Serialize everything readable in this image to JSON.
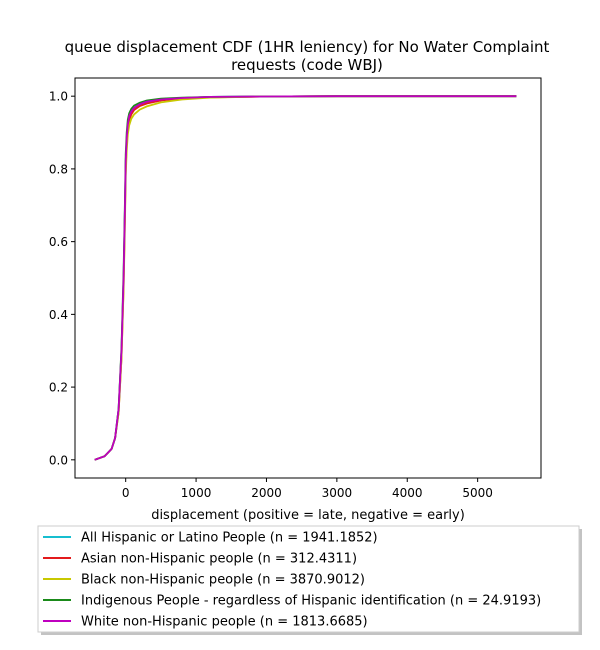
{
  "chart_data": {
    "type": "line",
    "title": "queue displacement CDF (1HR leniency) for No Water Complaint requests (code WBJ)",
    "title_lines": [
      "queue displacement CDF (1HR leniency) for No Water Complaint",
      "requests (code WBJ)"
    ],
    "xlabel": "displacement (positive = late, negative = early)",
    "ylabel": "",
    "xlim": [
      -720,
      5900
    ],
    "ylim": [
      -0.05,
      1.05
    ],
    "xticks": [
      0,
      1000,
      2000,
      3000,
      4000,
      5000
    ],
    "yticks": [
      0.0,
      0.2,
      0.4,
      0.6,
      0.8,
      1.0
    ],
    "xtick_labels": [
      "0",
      "1000",
      "2000",
      "3000",
      "4000",
      "5000"
    ],
    "ytick_labels": [
      "0.0",
      "0.2",
      "0.4",
      "0.6",
      "0.8",
      "1.0"
    ],
    "grid": false,
    "legend_position": "below",
    "series": [
      {
        "name": "All Hispanic or Latino People (n = 1941.1852)",
        "color": "#17becf",
        "x": [
          -440,
          -300,
          -200,
          -150,
          -100,
          -60,
          -30,
          -10,
          0,
          15,
          30,
          50,
          80,
          120,
          200,
          300,
          500,
          800,
          1200,
          2000,
          3000,
          4000,
          5550
        ],
        "y": [
          0.0,
          0.01,
          0.03,
          0.06,
          0.14,
          0.3,
          0.5,
          0.7,
          0.82,
          0.88,
          0.92,
          0.94,
          0.955,
          0.965,
          0.975,
          0.982,
          0.99,
          0.995,
          0.998,
          0.999,
          1.0,
          1.0,
          1.0
        ]
      },
      {
        "name": "Asian non-Hispanic people (n = 312.4311)",
        "color": "#e31a1c",
        "x": [
          -440,
          -300,
          -200,
          -150,
          -100,
          -60,
          -30,
          -10,
          0,
          15,
          30,
          50,
          80,
          120,
          200,
          300,
          500,
          800,
          1200,
          2000,
          3000,
          4000,
          5550
        ],
        "y": [
          0.0,
          0.01,
          0.03,
          0.06,
          0.13,
          0.28,
          0.48,
          0.68,
          0.8,
          0.87,
          0.91,
          0.935,
          0.95,
          0.962,
          0.973,
          0.98,
          0.988,
          0.994,
          0.997,
          0.999,
          1.0,
          1.0,
          1.0
        ]
      },
      {
        "name": "Black non-Hispanic people (n = 3870.9012)",
        "color": "#c8c800",
        "x": [
          -440,
          -300,
          -200,
          -150,
          -100,
          -60,
          -30,
          -10,
          0,
          15,
          30,
          50,
          80,
          120,
          200,
          300,
          500,
          800,
          1200,
          2000,
          3000,
          4000,
          5550
        ],
        "y": [
          0.0,
          0.01,
          0.03,
          0.06,
          0.13,
          0.28,
          0.47,
          0.66,
          0.78,
          0.85,
          0.895,
          0.92,
          0.938,
          0.95,
          0.963,
          0.972,
          0.983,
          0.991,
          0.996,
          0.999,
          1.0,
          1.0,
          1.0
        ]
      },
      {
        "name": "Indigenous People - regardless of Hispanic identification (n = 24.9193)",
        "color": "#1a8a1a",
        "x": [
          -440,
          -300,
          -200,
          -150,
          -100,
          -60,
          -30,
          -10,
          0,
          15,
          30,
          50,
          80,
          120,
          200,
          300,
          500,
          800,
          1200,
          2000,
          3000,
          4000,
          5550
        ],
        "y": [
          0.0,
          0.01,
          0.03,
          0.06,
          0.14,
          0.31,
          0.52,
          0.72,
          0.84,
          0.9,
          0.935,
          0.953,
          0.965,
          0.974,
          0.982,
          0.988,
          0.993,
          0.996,
          0.998,
          0.999,
          1.0,
          1.0,
          1.0
        ]
      },
      {
        "name": "White non-Hispanic people (n = 1813.6685)",
        "color": "#bf00bf",
        "x": [
          -440,
          -300,
          -200,
          -150,
          -100,
          -60,
          -30,
          -10,
          0,
          15,
          30,
          50,
          80,
          120,
          200,
          300,
          500,
          800,
          1200,
          2000,
          3000,
          4000,
          5550
        ],
        "y": [
          0.0,
          0.01,
          0.03,
          0.06,
          0.14,
          0.3,
          0.5,
          0.7,
          0.82,
          0.885,
          0.922,
          0.945,
          0.958,
          0.968,
          0.978,
          0.985,
          0.991,
          0.995,
          0.998,
          0.999,
          1.0,
          1.0,
          1.0
        ]
      }
    ]
  }
}
